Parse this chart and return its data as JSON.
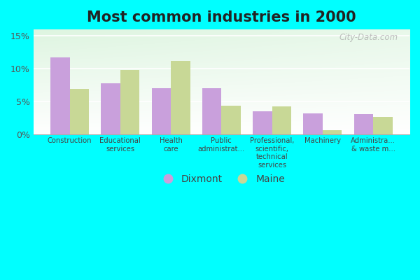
{
  "title": "Most common industries in 2000",
  "categories": [
    "Construction",
    "Educational\nservices",
    "Health\ncare",
    "Public\nadministrat...",
    "Professional,\nscientific,\ntechnical\nservices",
    "Machinery",
    "Administra...\n& waste m..."
  ],
  "dixmont_values": [
    11.7,
    7.8,
    7.0,
    7.0,
    3.5,
    3.2,
    3.1
  ],
  "maine_values": [
    6.9,
    9.8,
    11.2,
    4.4,
    4.2,
    0.6,
    2.7
  ],
  "dixmont_color": "#c9a0dc",
  "maine_color": "#c8d896",
  "background_color": "#00ffff",
  "ylim": [
    0,
    16
  ],
  "yticks": [
    0,
    5,
    10,
    15
  ],
  "ytick_labels": [
    "0%",
    "5%",
    "10%",
    "15%"
  ],
  "watermark": "City-Data.com",
  "legend_dixmont": "Dixmont",
  "legend_maine": "Maine",
  "title_fontsize": 15,
  "bar_width": 0.38
}
